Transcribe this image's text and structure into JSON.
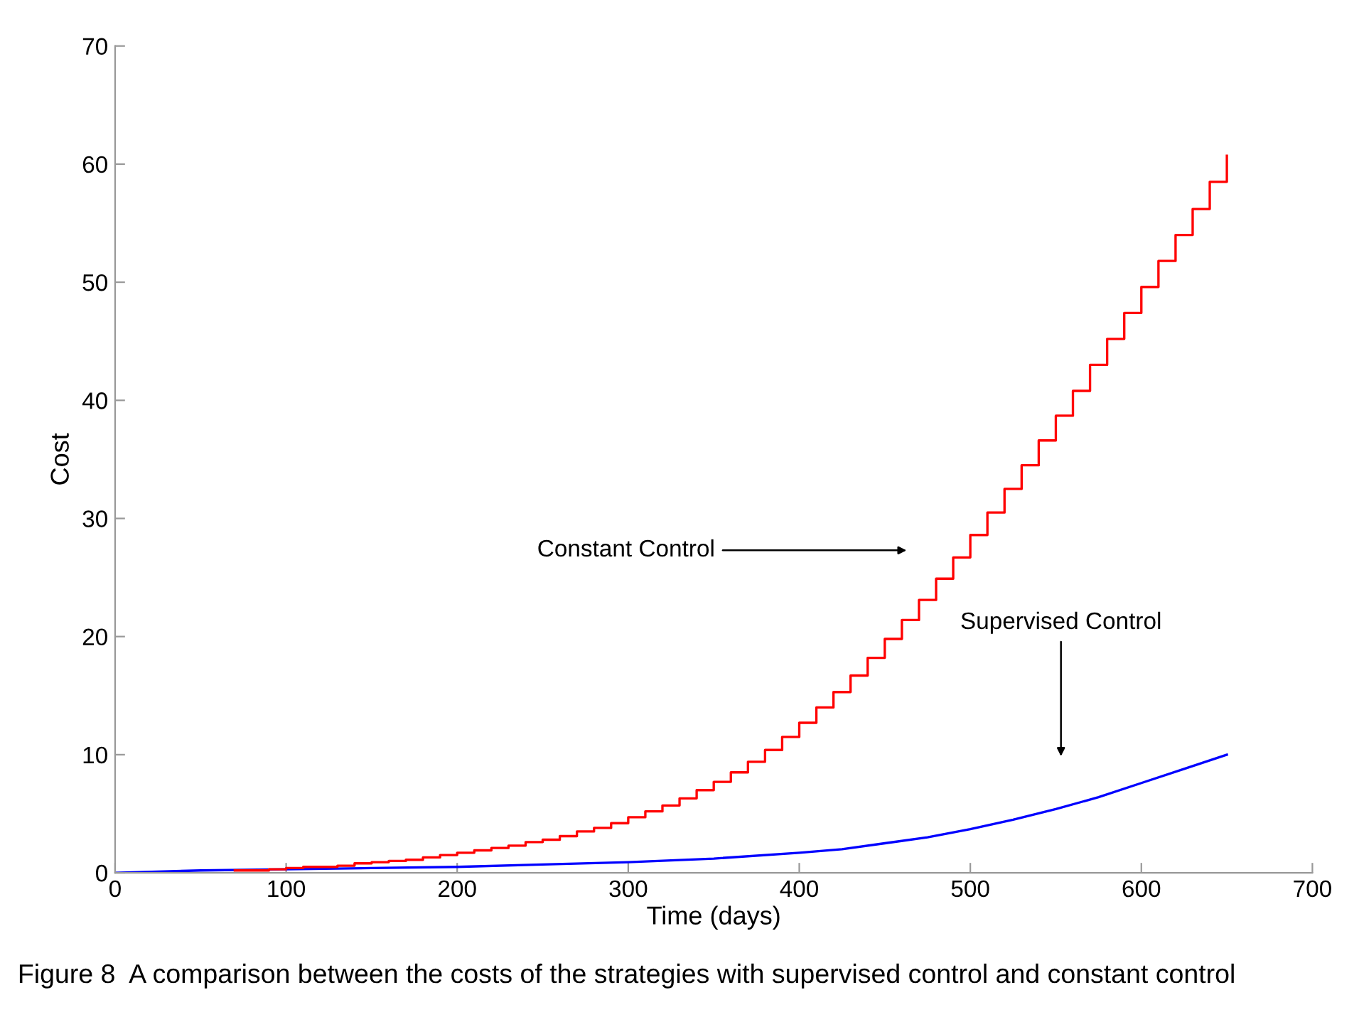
{
  "chart_data": {
    "type": "line",
    "xlabel": "Time (days)",
    "ylabel": "Cost",
    "xlim": [
      0,
      700
    ],
    "ylim": [
      0,
      70
    ],
    "xticks": [
      0,
      100,
      200,
      300,
      400,
      500,
      600,
      700
    ],
    "yticks": [
      0,
      10,
      20,
      30,
      40,
      50,
      60,
      70
    ],
    "grid": false,
    "legend": false,
    "marker": "none",
    "line_style": "solid",
    "series": [
      {
        "type": "step",
        "color": "#ff0000",
        "x": [
          70,
          80,
          90,
          100,
          110,
          120,
          130,
          140,
          150,
          160,
          170,
          180,
          190,
          200,
          210,
          220,
          230,
          240,
          250,
          260,
          270,
          280,
          290,
          300,
          310,
          320,
          330,
          340,
          350,
          360,
          370,
          380,
          390,
          400,
          410,
          420,
          430,
          440,
          450,
          460,
          470,
          480,
          490,
          500,
          510,
          520,
          530,
          540,
          550,
          560,
          570,
          580,
          590,
          600,
          610,
          620,
          630,
          640,
          650
        ],
        "values": [
          0.2,
          0.2,
          0.3,
          0.4,
          0.5,
          0.5,
          0.6,
          0.8,
          0.9,
          1.0,
          1.1,
          1.3,
          1.5,
          1.7,
          1.9,
          2.1,
          2.3,
          2.6,
          2.8,
          3.1,
          3.5,
          3.8,
          4.2,
          4.7,
          5.2,
          5.7,
          6.3,
          7.0,
          7.7,
          8.5,
          9.4,
          10.4,
          11.5,
          12.7,
          14.0,
          15.3,
          16.7,
          18.2,
          19.8,
          21.4,
          23.1,
          24.9,
          26.7,
          28.6,
          30.5,
          32.5,
          34.5,
          36.6,
          38.7,
          40.8,
          43.0,
          45.2,
          47.4,
          49.6,
          51.8,
          54.0,
          56.2,
          58.5,
          60.7
        ]
      },
      {
        "color": "#0000ff",
        "x": [
          0,
          50,
          100,
          150,
          200,
          250,
          300,
          350,
          400,
          425,
          450,
          475,
          500,
          525,
          550,
          575,
          600,
          625,
          650
        ],
        "values": [
          0,
          0.2,
          0.3,
          0.4,
          0.5,
          0.7,
          0.9,
          1.2,
          1.7,
          2.0,
          2.5,
          3.0,
          3.7,
          4.5,
          5.4,
          6.4,
          7.6,
          8.8,
          10.0
        ]
      }
    ],
    "annotations": [
      "Constant Control",
      "Supervised Control",
      "Figure 8  A comparison between the costs of the strategies with supervised control and constant control"
    ]
  }
}
